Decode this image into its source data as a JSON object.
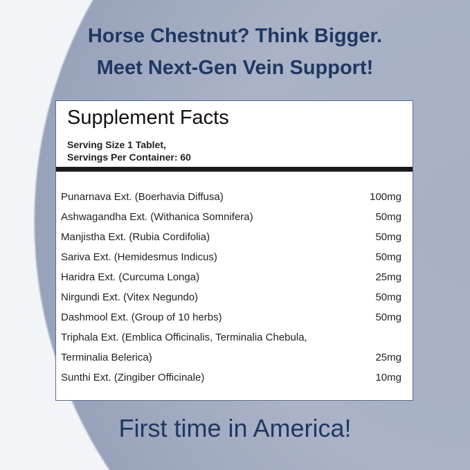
{
  "headline": {
    "line1": "Horse Chestnut? Think Bigger.",
    "line2": "Meet Next-Gen Vein Support!"
  },
  "facts": {
    "title": "Supplement Facts",
    "serving_size": "Serving Size 1 Tablet,",
    "servings_per_container": "Servings Per Container: 60",
    "ingredients": [
      {
        "name": "Punarnava Ext. (Boerhavia Diffusa)",
        "amount": "100mg"
      },
      {
        "name": "Ashwagandha Ext. (Withanica Somnifera)",
        "amount": "50mg"
      },
      {
        "name": "Manjistha Ext. (Rubia Cordifolia)",
        "amount": "50mg"
      },
      {
        "name": "Sariva Ext. (Hemidesmus Indicus)",
        "amount": "50mg"
      },
      {
        "name": "Haridra Ext. (Curcuma Longa)",
        "amount": "25mg"
      },
      {
        "name": "Nirgundi Ext. (Vitex Negundo)",
        "amount": "50mg"
      },
      {
        "name": "Dashmool Ext. (Group of 10 herbs)",
        "amount": "50mg"
      },
      {
        "name": "Triphala Ext. (Emblica Officinalis, Terminalia Chebula,",
        "amount": ""
      },
      {
        "name": "Terminalia Belerica)",
        "amount": "25mg"
      },
      {
        "name": "Sunthi Ext. (Zingiber Officinale)",
        "amount": "10mg"
      }
    ]
  },
  "footer": "First time in America!",
  "colors": {
    "text_navy": "#203763",
    "background": "#a7b0c4"
  }
}
